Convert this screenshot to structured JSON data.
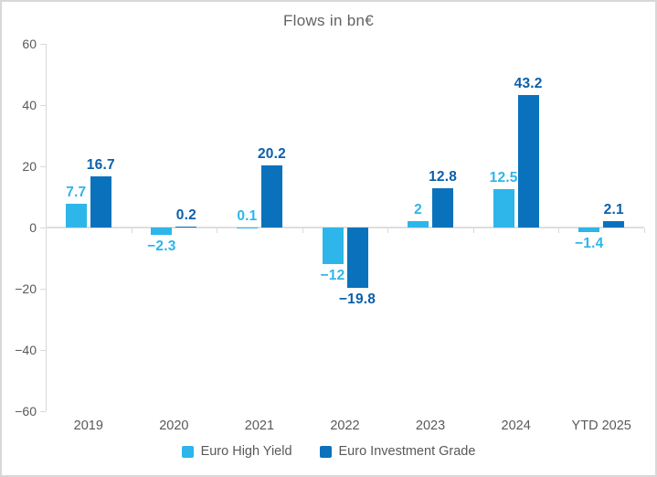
{
  "window": {
    "background": "#ffffff",
    "border_color": "#d8d8d8"
  },
  "chart_data": {
    "type": "bar",
    "title": "Flows in bn€",
    "categories": [
      "2019",
      "2020",
      "2021",
      "2022",
      "2023",
      "2024",
      "YTD 2025"
    ],
    "series": [
      {
        "name": "Euro High Yield",
        "color": "#2eb5ea",
        "label_color": "#2eb5ea",
        "values": [
          7.7,
          -2.3,
          0.1,
          -12,
          2,
          12.5,
          -1.4
        ],
        "labels": [
          "7.7",
          "−2.3",
          "0.1",
          "−12",
          "2",
          "12.5",
          "−1.4"
        ]
      },
      {
        "name": "Euro Investment Grade",
        "color": "#0a72bc",
        "label_color": "#0b5fa9",
        "values": [
          16.7,
          0.2,
          20.2,
          -19.8,
          12.8,
          43.2,
          2.1
        ],
        "labels": [
          "16.7",
          "0.2",
          "20.2",
          "−19.8",
          "12.8",
          "43.2",
          "2.1"
        ]
      }
    ],
    "ylim": [
      -60,
      60
    ],
    "yticks": [
      60,
      40,
      20,
      0,
      -20,
      -40,
      -60
    ],
    "ytick_labels": [
      "60",
      "40",
      "20",
      "0",
      "−20",
      "−40",
      "−60"
    ],
    "grid": "zero-line-only",
    "legend_position": "bottom",
    "axis_color": "#d9d9d9",
    "text_color": "#595959"
  }
}
